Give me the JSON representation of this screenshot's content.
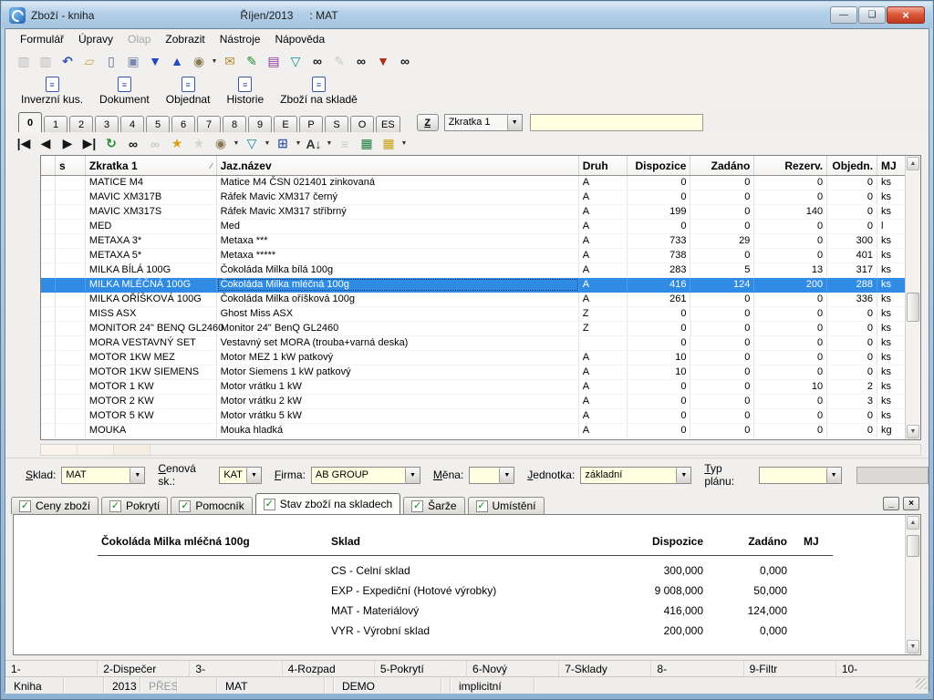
{
  "window": {
    "title": "Zboží - kniha",
    "period": "Říjen/2013",
    "context": ": MAT",
    "minimize": "—",
    "restore": "❏",
    "close": "×"
  },
  "menu": {
    "items": [
      {
        "label": "Formulář",
        "enabled": true
      },
      {
        "label": "Úpravy",
        "enabled": true
      },
      {
        "label": "Olap",
        "enabled": false
      },
      {
        "label": "Zobrazit",
        "enabled": true
      },
      {
        "label": "Nástroje",
        "enabled": true
      },
      {
        "label": "Nápověda",
        "enabled": true
      }
    ]
  },
  "toolbar_main": {
    "icons": [
      {
        "name": "save-icon",
        "glyph": "▥",
        "color": "#7a7a7a",
        "enabled": false
      },
      {
        "name": "save-as-icon",
        "glyph": "▥",
        "color": "#7a7a7a",
        "enabled": false
      },
      {
        "name": "undo-icon",
        "glyph": "↶",
        "color": "#2d4fb0",
        "enabled": true
      },
      {
        "name": "open-folder-icon",
        "glyph": "▱",
        "color": "#d8a23a",
        "enabled": true
      },
      {
        "name": "new-document-icon",
        "glyph": "▯",
        "color": "#5a6a8a",
        "enabled": true
      },
      {
        "name": "copy-icon",
        "glyph": "▣",
        "color": "#7a88b0",
        "enabled": true
      },
      {
        "name": "move-down-icon",
        "glyph": "▼",
        "color": "#2448c0",
        "enabled": true
      },
      {
        "name": "move-up-icon",
        "glyph": "▲",
        "color": "#2448c0",
        "enabled": true
      },
      {
        "name": "snapshot-icon",
        "glyph": "◉",
        "color": "#8a7a50",
        "enabled": true,
        "dropdown": true
      },
      {
        "name": "mail-icon",
        "glyph": "✉",
        "color": "#b08a20",
        "enabled": true
      },
      {
        "name": "export-sign-icon",
        "glyph": "✎",
        "color": "#1f8a2f",
        "enabled": true
      },
      {
        "name": "catalog-book-icon",
        "glyph": "▤",
        "color": "#8a3a9a",
        "enabled": true
      },
      {
        "name": "filter-icon",
        "glyph": "▽",
        "color": "#128a9a",
        "enabled": true
      },
      {
        "name": "find-icon",
        "glyph": "∞",
        "color": "#151515",
        "enabled": true
      },
      {
        "name": "edit-icon",
        "glyph": "✎",
        "color": "#9a9a9a",
        "enabled": false
      },
      {
        "name": "find-special-icon",
        "glyph": "∞",
        "color": "#151515",
        "enabled": true
      },
      {
        "name": "filter-document-icon",
        "glyph": "▼",
        "color": "#b03020",
        "enabled": true
      },
      {
        "name": "find-book-icon",
        "glyph": "∞",
        "color": "#151515",
        "enabled": true
      }
    ]
  },
  "toolbar_actions": {
    "buttons": [
      "Inverzní kus.",
      "Dokument",
      "Objednat",
      "Historie",
      "Zboží na skladě"
    ]
  },
  "tab_strip": {
    "tabs": [
      "0",
      "1",
      "2",
      "3",
      "4",
      "5",
      "6",
      "7",
      "8",
      "9",
      "E",
      "P",
      "S",
      "O",
      "ES"
    ],
    "active_tab": "0",
    "z_button": "Z",
    "sort_selector": "Zkratka 1",
    "quick_search_value": ""
  },
  "nav_toolbar": {
    "icons": [
      {
        "name": "first-record-icon",
        "glyph": "|◀",
        "color": "#151515",
        "enabled": true
      },
      {
        "name": "prev-record-icon",
        "glyph": "◀",
        "color": "#151515",
        "enabled": true
      },
      {
        "name": "next-record-icon",
        "glyph": "▶",
        "color": "#151515",
        "enabled": true
      },
      {
        "name": "last-record-icon",
        "glyph": "▶|",
        "color": "#151515",
        "enabled": true
      },
      {
        "name": "refresh-icon",
        "glyph": "↻",
        "color": "#1f8a2f",
        "enabled": true
      },
      {
        "name": "find-icon",
        "glyph": "∞",
        "color": "#151515",
        "enabled": true
      },
      {
        "name": "find-next-icon",
        "glyph": "∞",
        "color": "#9a9a9a",
        "enabled": false
      },
      {
        "name": "add-record-icon",
        "glyph": "★",
        "color": "#d8a21a",
        "enabled": true
      },
      {
        "name": "delete-record-icon",
        "glyph": "★",
        "color": "#b5b3b0",
        "enabled": false
      },
      {
        "name": "snapshot-icon",
        "glyph": "◉",
        "color": "#8a7a50",
        "enabled": true,
        "dropdown": true
      },
      {
        "name": "filter-icon",
        "glyph": "▽",
        "color": "#128a9a",
        "enabled": true,
        "dropdown": true
      },
      {
        "name": "form-view-icon",
        "glyph": "⊞",
        "color": "#3a5ab0",
        "enabled": true,
        "dropdown": true
      },
      {
        "name": "sort-az-icon",
        "glyph": "A↓",
        "color": "#333333",
        "enabled": true,
        "dropdown": true
      },
      {
        "name": "list-icon",
        "glyph": "≡",
        "color": "#9a9a9a",
        "enabled": false
      },
      {
        "name": "excel-icon",
        "glyph": "▦",
        "color": "#1f7a3a",
        "enabled": true
      },
      {
        "name": "table-columns-icon",
        "glyph": "▦",
        "color": "#c8a018",
        "enabled": true,
        "dropdown": true
      }
    ]
  },
  "grid": {
    "columns": [
      "",
      "s",
      "Zkratka 1",
      "Jaz.název",
      "Druh",
      "Dispozice",
      "Zadáno",
      "Rezerv.",
      "Objedn.",
      "MJ"
    ],
    "numeric_columns": [
      5,
      6,
      7,
      8
    ],
    "sort_column": "Zkratka 1",
    "selected_index": 7,
    "rows": [
      [
        "",
        "",
        "MATICE M4",
        "Matice M4 ČSN 021401 zinkovaná",
        "A",
        "0",
        "0",
        "0",
        "0",
        "ks"
      ],
      [
        "",
        "",
        "MAVIC XM317B",
        "Ráfek Mavic XM317 černý",
        "A",
        "0",
        "0",
        "0",
        "0",
        "ks"
      ],
      [
        "",
        "",
        "MAVIC XM317S",
        "Ráfek Mavic XM317 stříbrný",
        "A",
        "199",
        "0",
        "140",
        "0",
        "ks"
      ],
      [
        "",
        "",
        "MED",
        "Med",
        "A",
        "0",
        "0",
        "0",
        "0",
        "l"
      ],
      [
        "",
        "",
        "METAXA 3*",
        "Metaxa ***",
        "A",
        "733",
        "29",
        "0",
        "300",
        "ks"
      ],
      [
        "",
        "",
        "METAXA 5*",
        "Metaxa *****",
        "A",
        "738",
        "0",
        "0",
        "401",
        "ks"
      ],
      [
        "",
        "",
        "MILKA BÍLÁ 100G",
        "Čokoláda Milka bílá 100g",
        "A",
        "283",
        "5",
        "13",
        "317",
        "ks"
      ],
      [
        "",
        "",
        "MILKA MLÉČNÁ 100G",
        "Čokoláda Milka mléčná 100g",
        "A",
        "416",
        "124",
        "200",
        "288",
        "ks"
      ],
      [
        "",
        "",
        "MILKA OŘÍŠKOVÁ 100G",
        "Čokoláda Milka oříšková 100g",
        "A",
        "261",
        "0",
        "0",
        "336",
        "ks"
      ],
      [
        "",
        "",
        "MISS ASX",
        "Ghost Miss ASX",
        "Z",
        "0",
        "0",
        "0",
        "0",
        "ks"
      ],
      [
        "",
        "",
        "MONITOR 24\" BENQ GL2460",
        "Monitor 24\" BenQ GL2460",
        "Z",
        "0",
        "0",
        "0",
        "0",
        "ks"
      ],
      [
        "",
        "",
        "MORA VESTAVNÝ SET",
        "Vestavný set MORA (trouba+varná deska)",
        "",
        "0",
        "0",
        "0",
        "0",
        "ks"
      ],
      [
        "",
        "",
        "MOTOR  1KW MEZ",
        "Motor MEZ 1 kW patkový",
        "A",
        "10",
        "0",
        "0",
        "0",
        "ks"
      ],
      [
        "",
        "",
        "MOTOR  1KW SIEMENS",
        "Motor Siemens 1 kW patkový",
        "A",
        "10",
        "0",
        "0",
        "0",
        "ks"
      ],
      [
        "",
        "",
        "MOTOR 1 KW",
        "Motor vrátku 1 kW",
        "A",
        "0",
        "0",
        "10",
        "2",
        "ks"
      ],
      [
        "",
        "",
        "MOTOR 2 KW",
        "Motor vrátku 2 kW",
        "A",
        "0",
        "0",
        "0",
        "3",
        "ks"
      ],
      [
        "",
        "",
        "MOTOR 5 KW",
        "Motor vrátku 5 kW",
        "A",
        "0",
        "0",
        "0",
        "0",
        "ks"
      ],
      [
        "",
        "",
        "MOUKA",
        "Mouka hladká",
        "A",
        "0",
        "0",
        "0",
        "0",
        "kg"
      ]
    ]
  },
  "filters": {
    "fields": [
      {
        "label": "Sklad:",
        "value": "MAT",
        "width": 92
      },
      {
        "label": "Cenová sk.:",
        "value": "KAT",
        "width": 48
      },
      {
        "label": "Firma:",
        "value": "AB GROUP",
        "width": 120
      },
      {
        "label": "Měna:",
        "value": "",
        "width": 50
      },
      {
        "label": "Jednotka:",
        "value": "základní",
        "width": 122
      },
      {
        "label": "Typ plánu:",
        "value": "",
        "width": 94
      }
    ]
  },
  "detail_tabs": {
    "tabs": [
      {
        "label": "Ceny zboží",
        "checked": true,
        "active": false
      },
      {
        "label": "Pokrytí",
        "checked": true,
        "active": false
      },
      {
        "label": "Pomocník",
        "checked": true,
        "active": false
      },
      {
        "label": "Stav zboží na skladech",
        "checked": true,
        "active": true
      },
      {
        "label": "Šarže",
        "checked": true,
        "active": false
      },
      {
        "label": "Umístění",
        "checked": true,
        "active": false
      }
    ],
    "minimize": "_",
    "close": "×"
  },
  "detail_panel": {
    "title": "Čokoláda Milka mléčná 100g",
    "columns": [
      "Sklad",
      "Dispozice",
      "Zadáno",
      "MJ"
    ],
    "rows": [
      {
        "sklad": "CS - Celní sklad",
        "dispozice": "300,000",
        "zadano": "0,000"
      },
      {
        "sklad": "EXP - Expediční (Hotové výrobky)",
        "dispozice": "9 008,000",
        "zadano": "50,000"
      },
      {
        "sklad": "MAT - Materiálový",
        "dispozice": "416,000",
        "zadano": "124,000"
      },
      {
        "sklad": "VYR - Výrobní sklad",
        "dispozice": "200,000",
        "zadano": "0,000"
      }
    ]
  },
  "function_keys": [
    "1-",
    "2-Dispečer",
    "3-",
    "4-Rozpad",
    "5-Pokrytí",
    "6-Nový",
    "7-Sklady",
    "8-",
    "9-Filtr",
    "10-"
  ],
  "status_bar": {
    "cells": [
      {
        "text": "Kniha",
        "width": 64
      },
      {
        "text": "",
        "width": 44
      },
      {
        "text": "2013",
        "width": 40
      },
      {
        "text": "PŘES",
        "width": 40,
        "dim": true
      },
      {
        "text": "",
        "width": 44
      },
      {
        "text": "MAT",
        "width": 118
      },
      {
        "text": "",
        "width": 10
      },
      {
        "text": "DEMO",
        "width": 118
      },
      {
        "text": "",
        "width": 10
      },
      {
        "text": "implicitní",
        "width": 92
      },
      {
        "text": "",
        "width": 0,
        "flex": true
      }
    ]
  },
  "colors": {
    "selection": "#2f8be4",
    "field_yellow": "#ffffe1",
    "titlebar_blue": "#b5d0e9",
    "checkbox_green": "#0d8a0d"
  }
}
